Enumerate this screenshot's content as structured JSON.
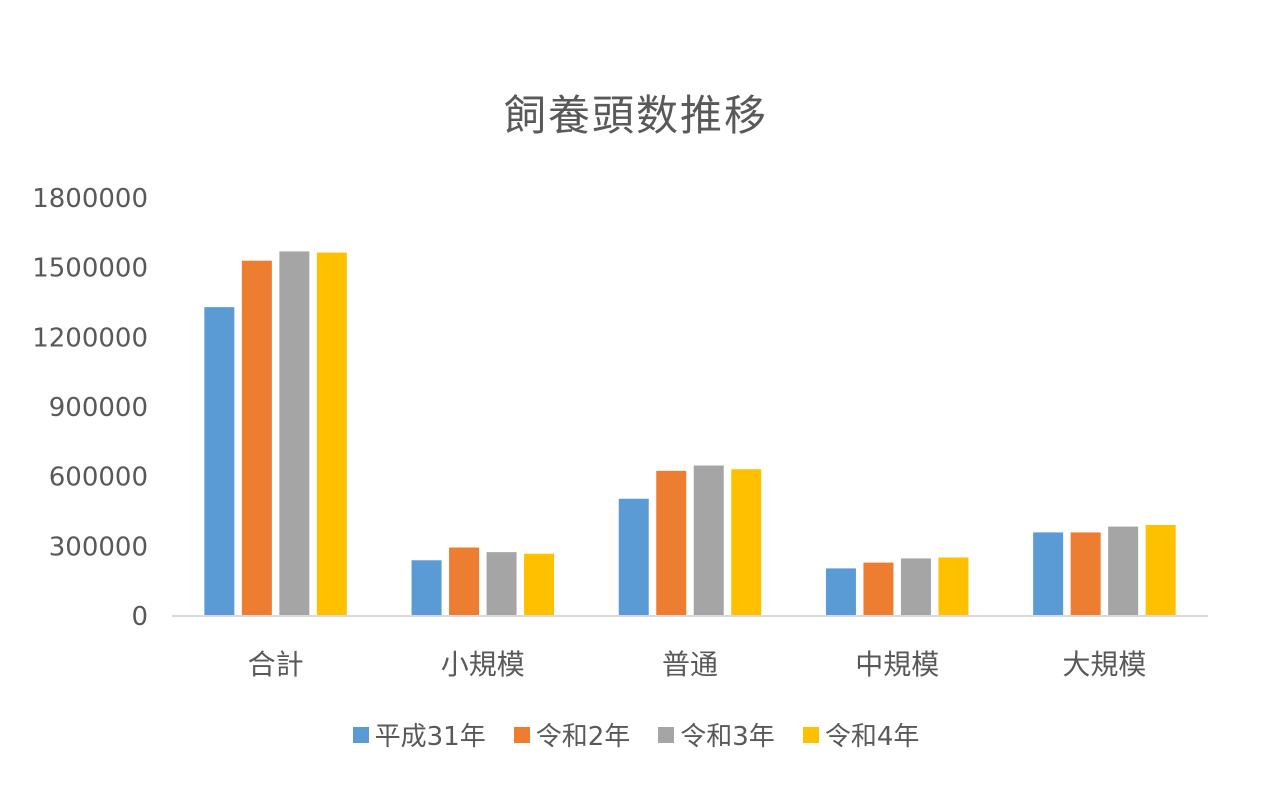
{
  "chart_data": {
    "type": "bar",
    "title": "飼養頭数推移",
    "xlabel": "",
    "ylabel": "",
    "categories": [
      "合計",
      "小規模",
      "普通",
      "中規模",
      "大規模"
    ],
    "ylim": [
      0,
      1800000
    ],
    "yticks": [
      0,
      300000,
      600000,
      900000,
      1200000,
      1500000,
      1800000
    ],
    "ytick_labels": [
      "0",
      "300000",
      "600000",
      "900000",
      "1200000",
      "1500000",
      "1800000"
    ],
    "grid": false,
    "legend_position": "bottom",
    "series": [
      {
        "name": "平成31年",
        "color": "#5B9BD5",
        "values": [
          1330000,
          240000,
          505000,
          205000,
          360000
        ]
      },
      {
        "name": "令和2年",
        "color": "#ED7D31",
        "values": [
          1530000,
          295000,
          625000,
          230000,
          360000
        ]
      },
      {
        "name": "令和3年",
        "color": "#A5A5A5",
        "values": [
          1570000,
          275000,
          648000,
          248000,
          385000
        ]
      },
      {
        "name": "令和4年",
        "color": "#FFC000",
        "values": [
          1565000,
          268000,
          632000,
          252000,
          392000
        ]
      }
    ]
  }
}
